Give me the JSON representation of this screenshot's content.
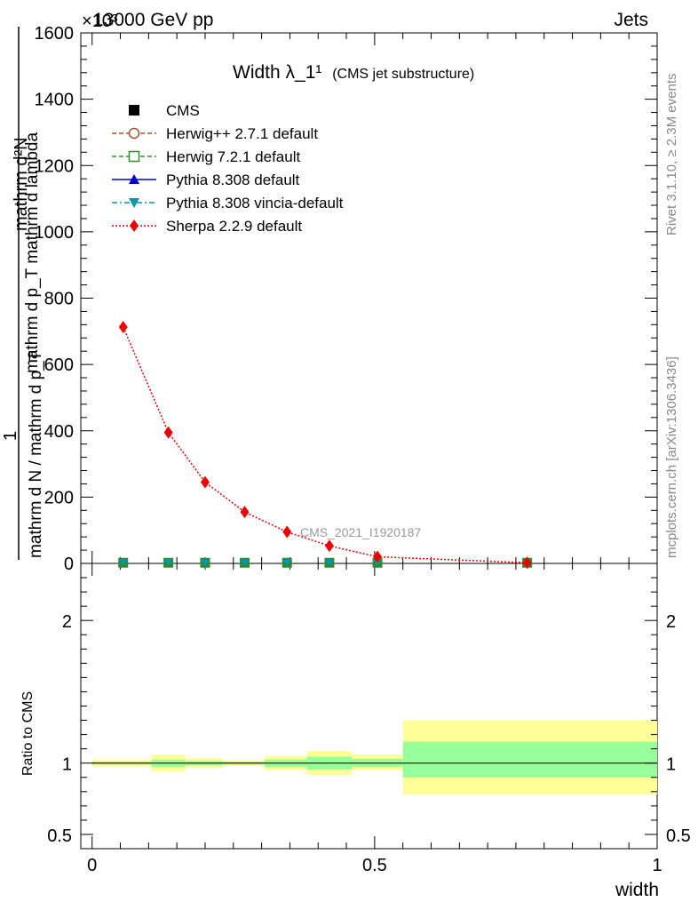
{
  "header": {
    "left": "13000 GeV pp",
    "right": "Jets",
    "exponent": "×10³"
  },
  "side": {
    "rivet": "Rivet 3.1.10, ≥ 2.3M events",
    "mcplots": "mcplots.cern.ch [arXiv:1306.3436]"
  },
  "chart_data": {
    "type": "line",
    "title": "Width λ_1¹",
    "subtitle": "(CMS jet substructure)",
    "watermark": "CMS_2021_I1920187",
    "ylabel_numerator": "mathrm d²N",
    "ylabel_line1": "mathrm d p_T mathrm d lambda",
    "ylabel_den": "mathrm d N / mathrm d p_T",
    "ylabel_den_numerator": "1",
    "xlabel": "width",
    "ratio_ylabel": "Ratio to CMS",
    "xlim": [
      -0.02,
      1.0
    ],
    "ylim": [
      0,
      1600
    ],
    "y_exponent": 3,
    "yticks": [
      0,
      200,
      400,
      600,
      800,
      1000,
      1200,
      1400,
      1600
    ],
    "xticks": [
      0,
      0.5,
      1
    ],
    "xtick_labels": [
      "0",
      "0.5",
      "1"
    ],
    "ratio_ylim": [
      0.4,
      2.4
    ],
    "ratio_yticks": [
      0.5,
      1,
      2
    ],
    "ratio_ytick_labels": [
      "0.5",
      "1",
      "2"
    ],
    "legend_position": "top-left",
    "legend": [
      {
        "name": "CMS",
        "color": "#000000",
        "marker": "square-filled",
        "line": "none"
      },
      {
        "name": "Herwig++ 2.7.1 default",
        "color": "#a0522d",
        "marker": "circle-open",
        "line": "dashed"
      },
      {
        "name": "Herwig 7.2.1 default",
        "color": "#2e8b2e",
        "marker": "square-open",
        "line": "dashed"
      },
      {
        "name": "Pythia 8.308 default",
        "color": "#0000cc",
        "marker": "triangle-up",
        "line": "solid"
      },
      {
        "name": "Pythia 8.308 vincia-default",
        "color": "#0099aa",
        "marker": "triangle-down",
        "line": "dashdot"
      },
      {
        "name": "Sherpa 2.2.9 default",
        "color": "#ee0000",
        "marker": "diamond",
        "line": "dotted"
      }
    ],
    "series": [
      {
        "name": "Sherpa 2.2.9 default",
        "x": [
          0.055,
          0.135,
          0.2,
          0.27,
          0.345,
          0.42,
          0.505,
          0.77
        ],
        "y": [
          713,
          395,
          245,
          155,
          95,
          53,
          20,
          2
        ]
      }
    ],
    "cms_points_x": [
      0.055,
      0.135,
      0.2,
      0.27,
      0.345,
      0.42,
      0.505,
      0.77
    ],
    "cms_points_y": [
      2,
      2,
      2,
      2,
      2,
      2,
      2,
      2
    ],
    "ratio_bands": [
      {
        "x0": 0.0,
        "x1": 0.105,
        "yellow": [
          0.975,
          1.025
        ],
        "green": [
          0.99,
          1.01
        ]
      },
      {
        "x0": 0.105,
        "x1": 0.165,
        "yellow": [
          0.94,
          1.06
        ],
        "green": [
          0.975,
          1.025
        ]
      },
      {
        "x0": 0.165,
        "x1": 0.23,
        "yellow": [
          0.965,
          1.035
        ],
        "green": [
          0.985,
          1.015
        ]
      },
      {
        "x0": 0.23,
        "x1": 0.305,
        "yellow": [
          0.98,
          1.02
        ],
        "green": [
          0.99,
          1.01
        ]
      },
      {
        "x0": 0.305,
        "x1": 0.38,
        "yellow": [
          0.95,
          1.05
        ],
        "green": [
          0.975,
          1.025
        ]
      },
      {
        "x0": 0.38,
        "x1": 0.46,
        "yellow": [
          0.915,
          1.085
        ],
        "green": [
          0.955,
          1.045
        ]
      },
      {
        "x0": 0.46,
        "x1": 0.55,
        "yellow": [
          0.95,
          1.06
        ],
        "green": [
          0.975,
          1.03
        ]
      },
      {
        "x0": 0.55,
        "x1": 1.0,
        "yellow": [
          0.78,
          1.3
        ],
        "green": [
          0.9,
          1.15
        ]
      }
    ],
    "band_colors": {
      "yellow": "#ffff99",
      "green": "#99ff99"
    }
  }
}
